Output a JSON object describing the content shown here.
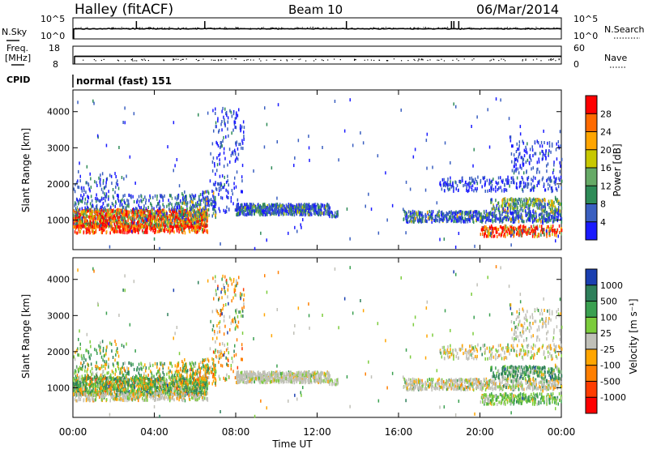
{
  "header": {
    "station": "Halley (fitACF)",
    "beam": "Beam 10",
    "date": "06/Mar/2014"
  },
  "noise_panel": {
    "left_label": "N.Sky",
    "left_ticks": [
      "10^5",
      "10^0"
    ],
    "right_label": "N.Search",
    "right_ticks": [
      "10^5",
      "10^0"
    ]
  },
  "freq_panel": {
    "left_label_line1": "Freq.",
    "left_label_line2": "[MHz]",
    "left_ticks": [
      "18",
      "8"
    ],
    "right_label": "Nave",
    "right_ticks": [
      "60",
      "0"
    ]
  },
  "cpid": {
    "label": "CPID",
    "value": "normal (fast) 151"
  },
  "chart_data": [
    {
      "type": "heatmap",
      "title": "",
      "ylabel": "Slant Range [km]",
      "xlabel": "Time UT",
      "x_ticks": [
        "00:00",
        "04:00",
        "08:00",
        "12:00",
        "16:00",
        "20:00",
        "00:00"
      ],
      "y_ticks": [
        "1000",
        "2000",
        "3000",
        "4000"
      ],
      "ylim": [
        180,
        4600
      ],
      "colorbar": {
        "label": "Power [dB]",
        "tick_labels": [
          "4",
          "8",
          "12",
          "16",
          "20",
          "24",
          "28"
        ],
        "colors": [
          "#1a1aff",
          "#3a5fc0",
          "#2e8b57",
          "#66aa66",
          "#c8c800",
          "#ffa500",
          "#ff6a00",
          "#ff0000"
        ]
      }
    },
    {
      "type": "heatmap",
      "title": "",
      "ylabel": "Slant Range [km]",
      "xlabel": "Time UT",
      "x_ticks": [
        "00:00",
        "04:00",
        "08:00",
        "12:00",
        "16:00",
        "20:00",
        "00:00"
      ],
      "y_ticks": [
        "1000",
        "2000",
        "3000",
        "4000"
      ],
      "ylim": [
        180,
        4600
      ],
      "colorbar": {
        "label": "Velocity [m s⁻¹]",
        "tick_labels": [
          "1000",
          "500",
          "100",
          "25",
          "-25",
          "-100",
          "-500",
          "-1000"
        ],
        "colors": [
          "#1a3fb0",
          "#2e7f5a",
          "#3aa050",
          "#7ccc3c",
          "#c0c0b8",
          "#ffa500",
          "#ff7f00",
          "#ff3c00",
          "#ff0000"
        ]
      }
    }
  ]
}
